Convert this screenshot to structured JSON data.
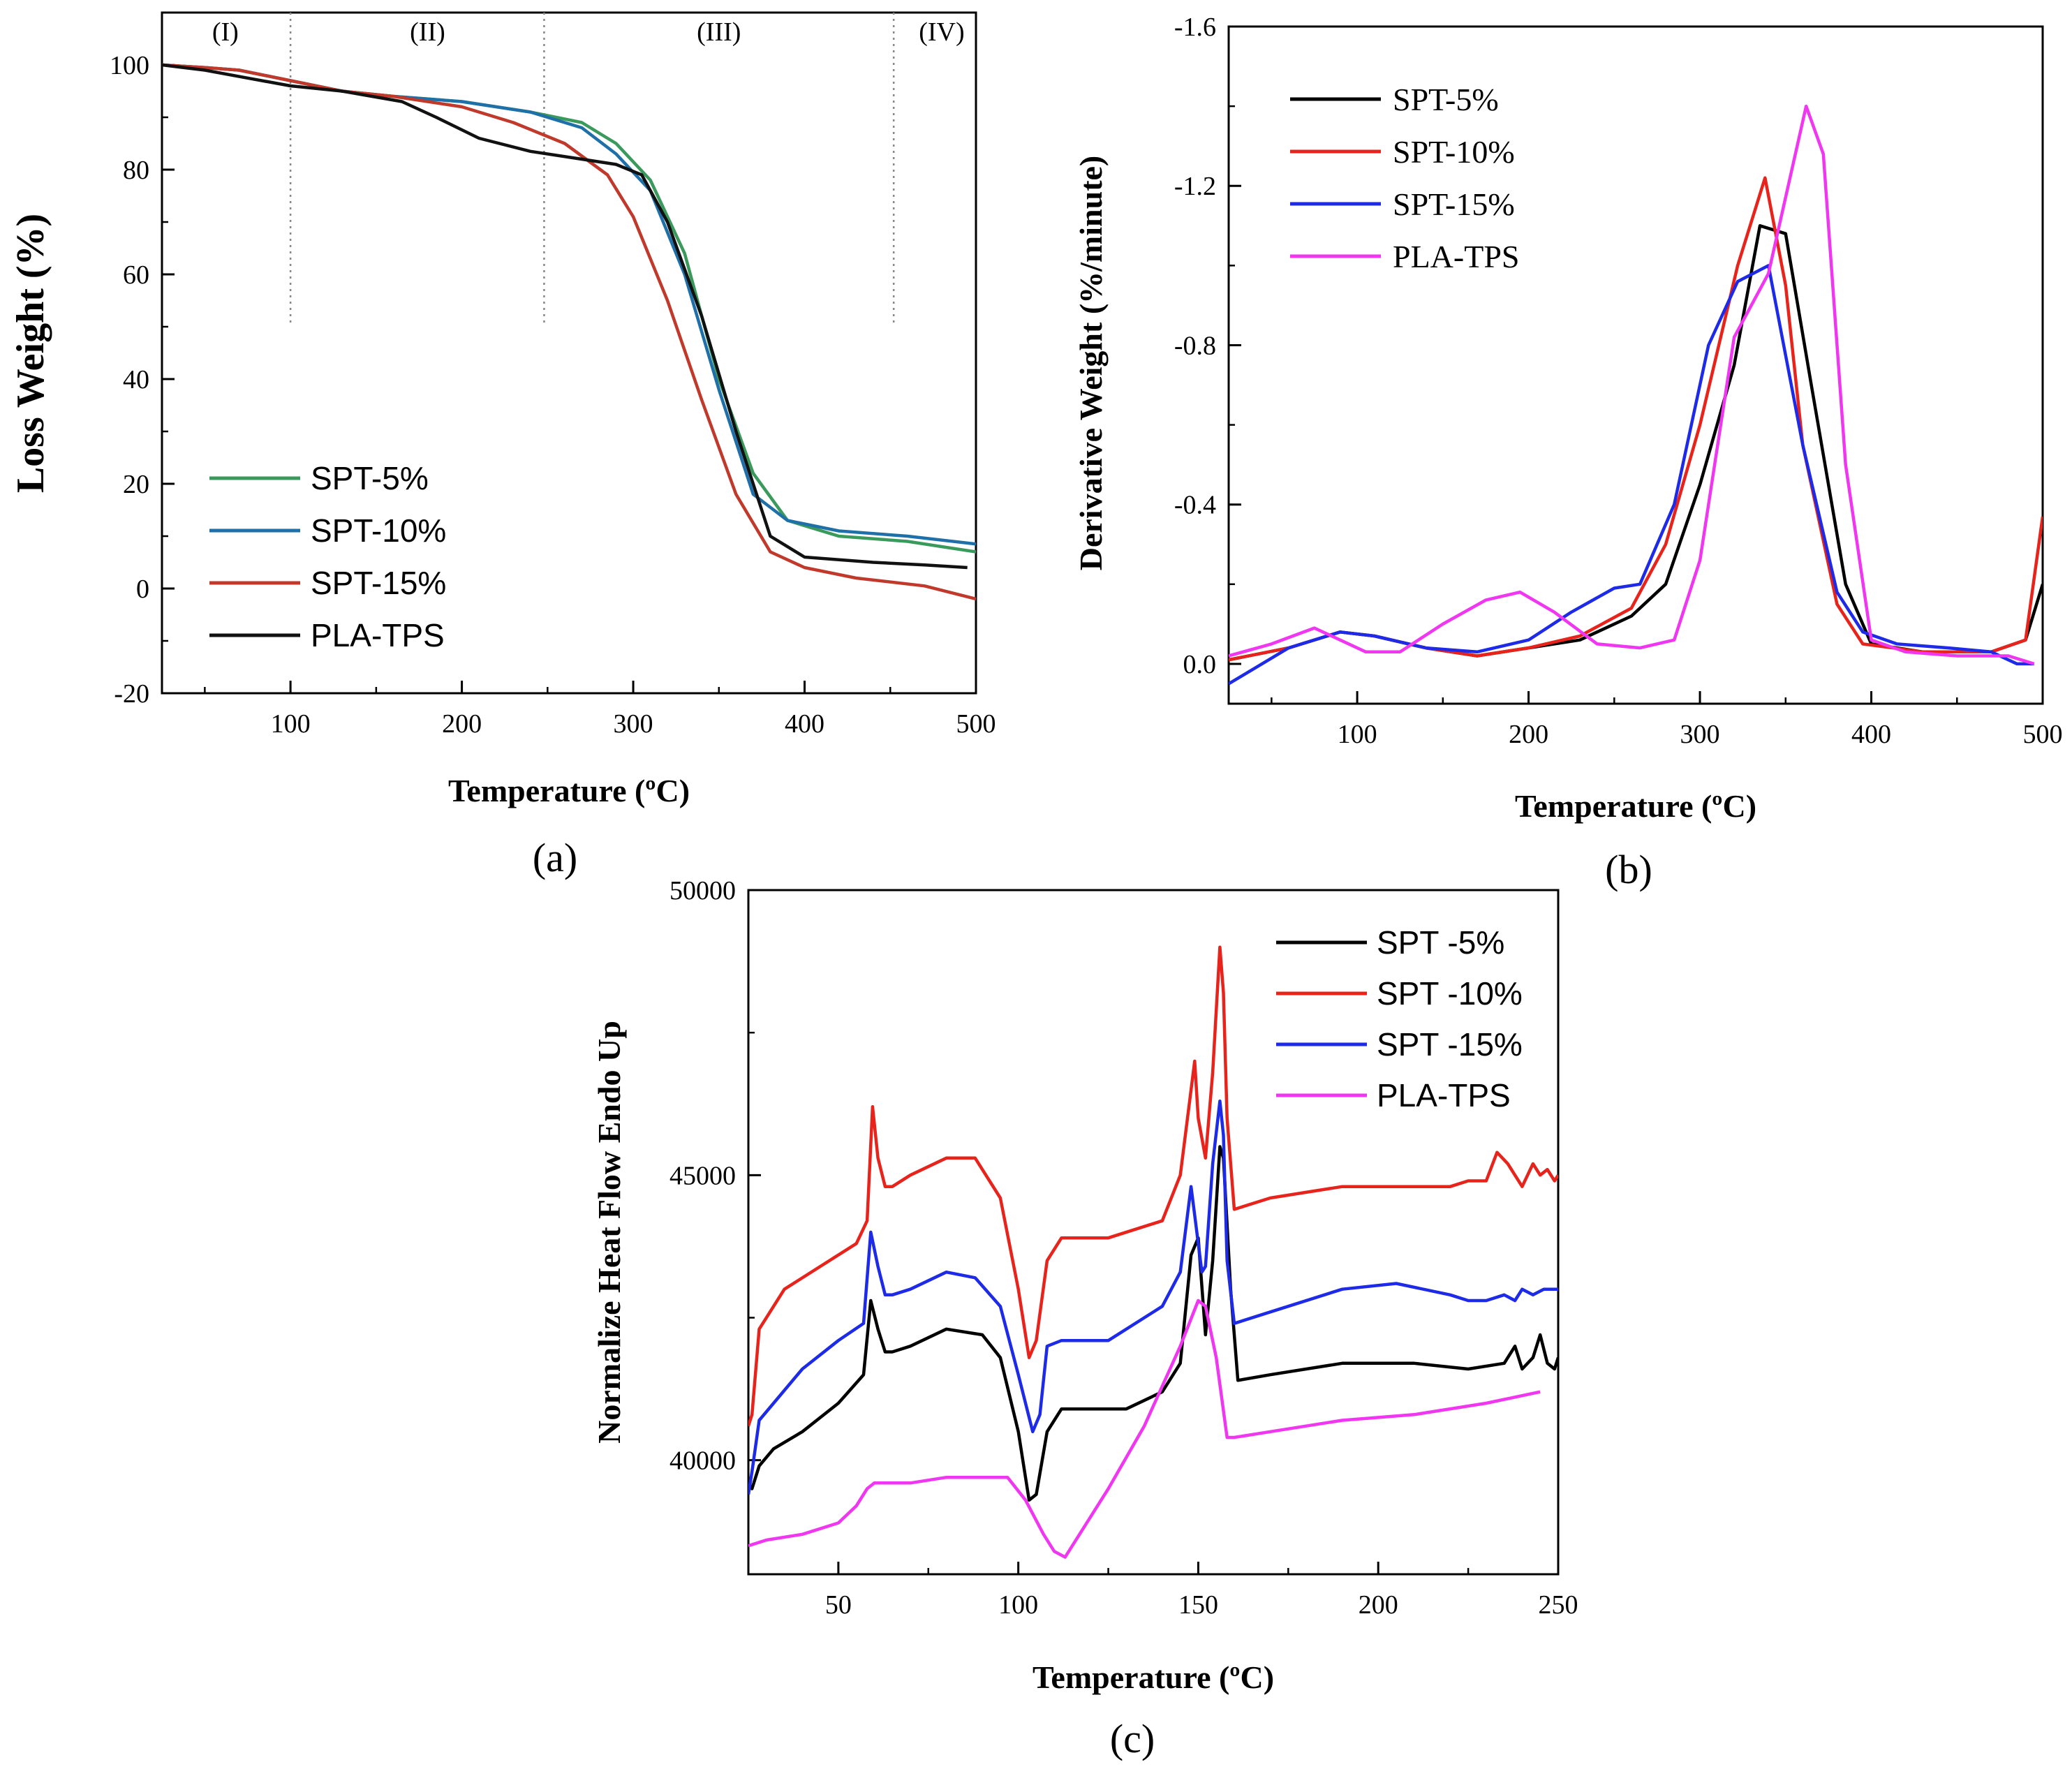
{
  "chart_data": [
    {
      "panel": "(a)",
      "type": "line",
      "xlabel": "Temperature (ºC)",
      "ylabel": "Loss Weight (%)",
      "xlim": [
        25,
        500
      ],
      "ylim": [
        -20,
        110
      ],
      "xticks": [
        100,
        200,
        300,
        400,
        500
      ],
      "yticks": [
        -20,
        0,
        20,
        40,
        60,
        80,
        100
      ],
      "grid": false,
      "legend_position": "bottom-left",
      "regions": [
        {
          "label": "(I)",
          "x": 62
        },
        {
          "label": "(II)",
          "x": 180
        },
        {
          "label": "(III)",
          "x": 350
        },
        {
          "label": "(IV)",
          "x": 480
        }
      ],
      "region_boundaries": [
        100,
        248,
        452
      ],
      "series": [
        {
          "name": "SPT-5%",
          "color": "#3a9a5c",
          "x": [
            25,
            50,
            70,
            100,
            130,
            160,
            200,
            240,
            270,
            290,
            310,
            330,
            350,
            370,
            390,
            420,
            460,
            500
          ],
          "y": [
            100,
            99.5,
            99,
            97,
            95,
            94,
            93,
            91,
            89,
            85,
            78,
            64,
            40,
            22,
            13,
            10,
            9,
            7
          ]
        },
        {
          "name": "SPT-10%",
          "color": "#1f6fa8",
          "x": [
            25,
            50,
            70,
            100,
            130,
            160,
            200,
            240,
            270,
            290,
            310,
            330,
            350,
            370,
            390,
            420,
            460,
            500
          ],
          "y": [
            100,
            99.5,
            99,
            97,
            95,
            94,
            93,
            91,
            88,
            83,
            76,
            60,
            38,
            18,
            13,
            11,
            10,
            8.5
          ]
        },
        {
          "name": "SPT-15%",
          "color": "#c0392b",
          "x": [
            25,
            50,
            70,
            100,
            130,
            160,
            200,
            230,
            260,
            285,
            300,
            320,
            340,
            360,
            380,
            400,
            430,
            470,
            500
          ],
          "y": [
            100,
            99.5,
            99,
            97,
            95,
            94,
            92,
            89,
            85,
            79,
            71,
            55,
            36,
            18,
            7,
            4,
            2,
            0.5,
            -2
          ]
        },
        {
          "name": "PLA-TPS",
          "color": "#111111",
          "x": [
            25,
            50,
            75,
            100,
            130,
            165,
            185,
            210,
            240,
            270,
            290,
            305,
            320,
            340,
            360,
            380,
            400,
            440,
            470,
            495
          ],
          "y": [
            100,
            99,
            97.5,
            96,
            95,
            93,
            90,
            86,
            83.5,
            82,
            81,
            79,
            70,
            52,
            30,
            10,
            6,
            5,
            4.5,
            4
          ]
        }
      ]
    },
    {
      "panel": "(b)",
      "type": "line",
      "xlabel": "Temperature (ºC)",
      "ylabel": "Derivative Weight (%/minute)",
      "xlim": [
        25,
        500
      ],
      "ylim": [
        0.1,
        -1.6
      ],
      "y_inverted": true,
      "xticks": [
        100,
        200,
        300,
        400,
        500
      ],
      "yticks": [
        "-1.6",
        "-1.2",
        "-0.8",
        "-0.4",
        "0.0"
      ],
      "grid": false,
      "legend_position": "top-left",
      "series": [
        {
          "name": "SPT-5%",
          "color": "#000000",
          "x": [
            25,
            60,
            90,
            110,
            140,
            170,
            200,
            230,
            260,
            280,
            300,
            320,
            335,
            350,
            365,
            385,
            400,
            430,
            470,
            490,
            500
          ],
          "y": [
            -0.01,
            -0.04,
            -0.08,
            -0.07,
            -0.04,
            -0.02,
            -0.04,
            -0.06,
            -0.12,
            -0.2,
            -0.45,
            -0.75,
            -1.1,
            -1.08,
            -0.7,
            -0.2,
            -0.05,
            -0.03,
            -0.03,
            -0.06,
            -0.2
          ]
        },
        {
          "name": "SPT-10%",
          "color": "#e8231b",
          "x": [
            25,
            60,
            90,
            110,
            140,
            170,
            200,
            230,
            260,
            280,
            300,
            322,
            338,
            350,
            360,
            380,
            395,
            430,
            470,
            490,
            500
          ],
          "y": [
            -0.01,
            -0.04,
            -0.08,
            -0.07,
            -0.04,
            -0.02,
            -0.04,
            -0.07,
            -0.14,
            -0.3,
            -0.6,
            -1.0,
            -1.22,
            -0.95,
            -0.55,
            -0.15,
            -0.05,
            -0.03,
            -0.03,
            -0.06,
            -0.37
          ]
        },
        {
          "name": "SPT-15%",
          "color": "#1d2ae8",
          "x": [
            25,
            60,
            90,
            110,
            140,
            170,
            200,
            225,
            250,
            265,
            285,
            305,
            322,
            340,
            360,
            380,
            395,
            415,
            445,
            470,
            485,
            495
          ],
          "y": [
            0.05,
            -0.04,
            -0.08,
            -0.07,
            -0.04,
            -0.03,
            -0.06,
            -0.13,
            -0.19,
            -0.2,
            -0.4,
            -0.8,
            -0.96,
            -1.0,
            -0.55,
            -0.18,
            -0.08,
            -0.05,
            -0.04,
            -0.03,
            0.0,
            0.0
          ]
        },
        {
          "name": "PLA-TPS",
          "color": "#f036f0",
          "x": [
            25,
            50,
            75,
            90,
            105,
            125,
            150,
            175,
            195,
            215,
            240,
            265,
            285,
            300,
            320,
            340,
            362,
            372,
            385,
            400,
            420,
            450,
            480,
            495
          ],
          "y": [
            -0.02,
            -0.05,
            -0.09,
            -0.06,
            -0.03,
            -0.03,
            -0.1,
            -0.16,
            -0.18,
            -0.13,
            -0.05,
            -0.04,
            -0.06,
            -0.26,
            -0.82,
            -0.98,
            -1.4,
            -1.28,
            -0.5,
            -0.06,
            -0.03,
            -0.02,
            -0.02,
            0.0
          ]
        }
      ]
    },
    {
      "panel": "(c)",
      "type": "line",
      "xlabel": "Temperature (ºC)",
      "ylabel": "Normalize Heat Flow Endo Up",
      "xlim": [
        25,
        250
      ],
      "ylim": [
        38000,
        50000
      ],
      "xticks": [
        50,
        100,
        150,
        200,
        250
      ],
      "yticks": [
        40000,
        45000,
        50000
      ],
      "grid": false,
      "legend_position": "top-right",
      "series": [
        {
          "name": "SPT -5%",
          "color": "#000000",
          "x": [
            25,
            26,
            28,
            32,
            40,
            50,
            57,
            59,
            61,
            63,
            65,
            70,
            80,
            90,
            95,
            100,
            103,
            105,
            108,
            112,
            120,
            130,
            140,
            145,
            148,
            150,
            152,
            154,
            156,
            157,
            159,
            161,
            170,
            190,
            210,
            225,
            235,
            238,
            240,
            243,
            245,
            247,
            249,
            250
          ],
          "y": [
            39600,
            39500,
            39900,
            40200,
            40500,
            41000,
            41500,
            42800,
            42300,
            41900,
            41900,
            42000,
            42300,
            42200,
            41800,
            40500,
            39300,
            39400,
            40500,
            40900,
            40900,
            40900,
            41200,
            41700,
            43600,
            43900,
            42200,
            43500,
            45500,
            45300,
            43000,
            41400,
            41500,
            41700,
            41700,
            41600,
            41700,
            42000,
            41600,
            41800,
            42200,
            41700,
            41600,
            41800
          ]
        },
        {
          "name": "SPT -10%",
          "color": "#e8231b",
          "x": [
            25,
            26,
            28,
            35,
            45,
            55,
            58,
            59.5,
            61,
            63,
            65,
            70,
            80,
            88,
            95,
            100,
            103,
            105,
            108,
            112,
            125,
            140,
            145,
            147,
            149,
            150,
            152,
            154,
            156,
            157,
            158,
            160,
            170,
            190,
            210,
            220,
            225,
            230,
            233,
            236,
            240,
            243,
            245,
            247,
            249,
            250
          ],
          "y": [
            40600,
            40800,
            42300,
            43000,
            43400,
            43800,
            44200,
            46200,
            45300,
            44800,
            44800,
            45000,
            45300,
            45300,
            44600,
            43000,
            41800,
            42100,
            43500,
            43900,
            43900,
            44200,
            45000,
            46000,
            47000,
            46000,
            45300,
            46800,
            49000,
            48200,
            46000,
            44400,
            44600,
            44800,
            44800,
            44800,
            44900,
            44900,
            45400,
            45200,
            44800,
            45200,
            45000,
            45100,
            44900,
            45000
          ]
        },
        {
          "name": "SPT -15%",
          "color": "#1d2ae8",
          "x": [
            25,
            26,
            28,
            32,
            40,
            50,
            57,
            59,
            61,
            63,
            65,
            70,
            80,
            88,
            95,
            100,
            104,
            106,
            108,
            112,
            125,
            140,
            145,
            148,
            149,
            151,
            152,
            154,
            156,
            157,
            158,
            160,
            170,
            190,
            205,
            220,
            225,
            230,
            235,
            238,
            240,
            243,
            246,
            250
          ],
          "y": [
            39400,
            39800,
            40700,
            41000,
            41600,
            42100,
            42400,
            44000,
            43400,
            42900,
            42900,
            43000,
            43300,
            43200,
            42700,
            41500,
            40500,
            40800,
            42000,
            42100,
            42100,
            42700,
            43300,
            44800,
            44300,
            43300,
            43400,
            45200,
            46300,
            45700,
            43500,
            42400,
            42600,
            43000,
            43100,
            42900,
            42800,
            42800,
            42900,
            42800,
            43000,
            42900,
            43000,
            43000
          ]
        },
        {
          "name": "PLA-TPS",
          "color": "#f036f0",
          "x": [
            25,
            30,
            40,
            50,
            55,
            58,
            60,
            63,
            70,
            80,
            90,
            97,
            102,
            107,
            110,
            113,
            118,
            125,
            135,
            145,
            150,
            152,
            155,
            158,
            160,
            170,
            190,
            210,
            230,
            245
          ],
          "y": [
            38500,
            38600,
            38700,
            38900,
            39200,
            39500,
            39600,
            39600,
            39600,
            39700,
            39700,
            39700,
            39300,
            38700,
            38400,
            38300,
            38800,
            39500,
            40600,
            42000,
            42800,
            42700,
            41800,
            40400,
            40400,
            40500,
            40700,
            40800,
            41000,
            41200
          ]
        }
      ]
    }
  ]
}
